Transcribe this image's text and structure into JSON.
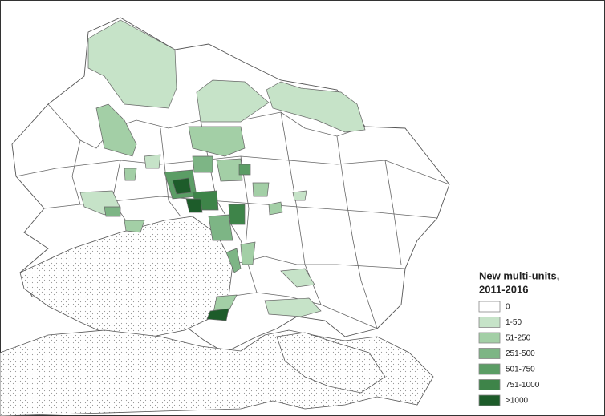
{
  "legend": {
    "title_lines": [
      "New multi-units,",
      "2011-2016"
    ],
    "items": [
      {
        "label": "0",
        "color": "#ffffff"
      },
      {
        "label": "1-50",
        "color": "#c6e3c8"
      },
      {
        "label": "51-250",
        "color": "#a3cfa6"
      },
      {
        "label": "251-500",
        "color": "#7db585"
      },
      {
        "label": "501-750",
        "color": "#5b9d65"
      },
      {
        "label": "751-1000",
        "color": "#3e8449"
      },
      {
        "label": ">1000",
        "color": "#1d5c2a"
      }
    ]
  }
}
